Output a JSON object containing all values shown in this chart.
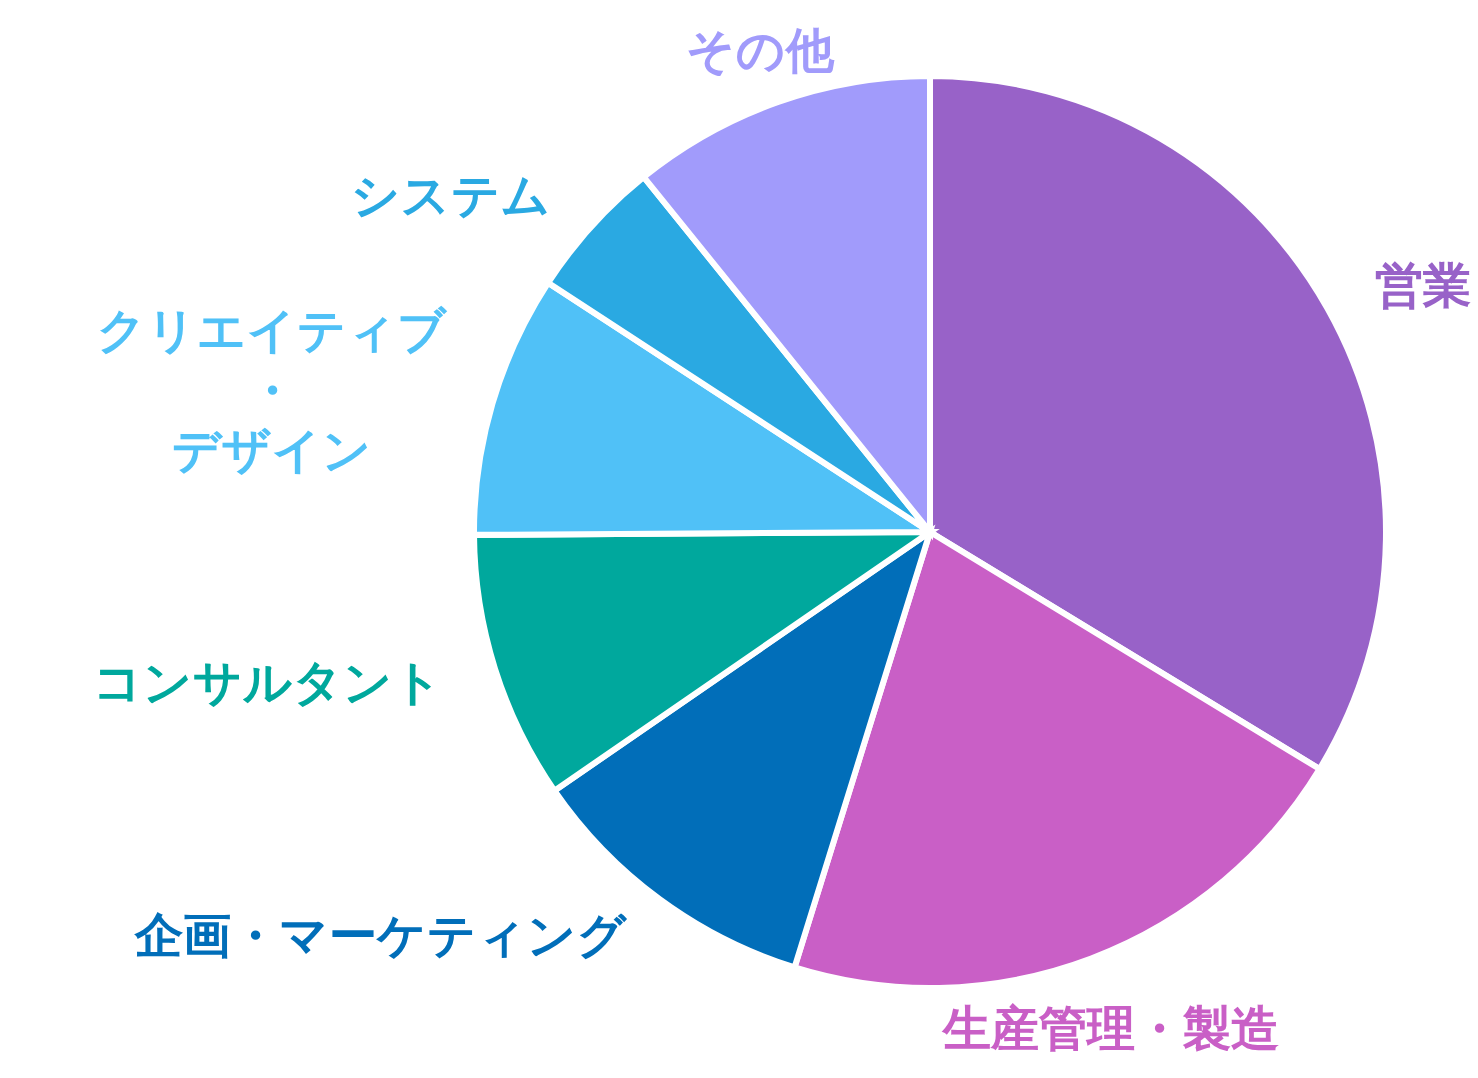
{
  "chart_data": {
    "type": "pie",
    "categories": [
      "営業",
      "生産管理・製造",
      "企画・マーケティング",
      "コンサルタント",
      "クリエイティブ・デザイン",
      "システム",
      "その他"
    ],
    "values": [
      33.7,
      21.1,
      10.6,
      9.5,
      9.3,
      5.0,
      10.8
    ],
    "colors": [
      "#9862c8",
      "#c95fc6",
      "#016eb9",
      "#00a89d",
      "#50c1f7",
      "#2aa9e2",
      "#a19bfb"
    ]
  }
}
